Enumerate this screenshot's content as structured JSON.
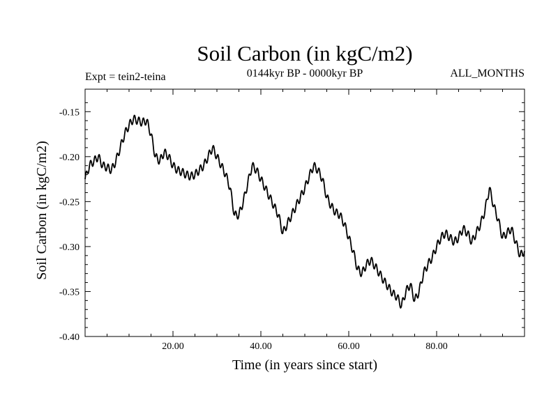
{
  "chart_data": {
    "type": "line",
    "title": "Soil Carbon (in kgC/m2)",
    "subtitle": "0144kyr BP - 0000kyr BP",
    "left_note": "Expt = tein2-teina",
    "right_note": "ALL_MONTHS",
    "xlabel": "Time (in years since start)",
    "ylabel": "Soil Carbon (in kgC/m2)",
    "xlim": [
      0,
      100
    ],
    "ylim": [
      -0.4,
      -0.125
    ],
    "x_ticks": [
      {
        "value": 20,
        "label": "20.00"
      },
      {
        "value": 40,
        "label": "40.00"
      },
      {
        "value": 60,
        "label": "60.00"
      },
      {
        "value": 80,
        "label": "80.00"
      }
    ],
    "y_ticks": [
      {
        "value": -0.15,
        "label": "-0.15"
      },
      {
        "value": -0.2,
        "label": "-0.20"
      },
      {
        "value": -0.25,
        "label": "-0.25"
      },
      {
        "value": -0.3,
        "label": "-0.30"
      },
      {
        "value": -0.35,
        "label": "-0.35"
      },
      {
        "value": -0.4,
        "label": "-0.40"
      }
    ],
    "line_color": "#000000",
    "series": [
      {
        "name": "Soil Carbon",
        "x": [
          0,
          1,
          2,
          3,
          4,
          5,
          6,
          7,
          8,
          9,
          10,
          11,
          12,
          13,
          14,
          15,
          16,
          17,
          18,
          19,
          20,
          21,
          22,
          23,
          24,
          25,
          26,
          27,
          28,
          29,
          30,
          31,
          32,
          33,
          34,
          35,
          36,
          37,
          38,
          39,
          40,
          41,
          42,
          43,
          44,
          45,
          46,
          47,
          48,
          49,
          50,
          51,
          52,
          53,
          54,
          55,
          56,
          57,
          58,
          59,
          60,
          61,
          62,
          63,
          64,
          65,
          66,
          67,
          68,
          69,
          70,
          71,
          72,
          73,
          74,
          75,
          76,
          77,
          78,
          79,
          80,
          81,
          82,
          83,
          84,
          85,
          86,
          87,
          88,
          89,
          90,
          91,
          92,
          93,
          94,
          95,
          96,
          97,
          98,
          99,
          100
        ],
        "values": [
          -0.225,
          -0.21,
          -0.205,
          -0.2,
          -0.21,
          -0.212,
          -0.215,
          -0.205,
          -0.19,
          -0.175,
          -0.165,
          -0.158,
          -0.16,
          -0.162,
          -0.16,
          -0.175,
          -0.2,
          -0.205,
          -0.195,
          -0.2,
          -0.21,
          -0.215,
          -0.217,
          -0.22,
          -0.222,
          -0.22,
          -0.215,
          -0.21,
          -0.2,
          -0.19,
          -0.2,
          -0.21,
          -0.22,
          -0.235,
          -0.265,
          -0.265,
          -0.25,
          -0.23,
          -0.21,
          -0.215,
          -0.225,
          -0.235,
          -0.245,
          -0.255,
          -0.265,
          -0.285,
          -0.275,
          -0.265,
          -0.255,
          -0.245,
          -0.235,
          -0.222,
          -0.21,
          -0.215,
          -0.225,
          -0.245,
          -0.255,
          -0.262,
          -0.265,
          -0.275,
          -0.29,
          -0.305,
          -0.325,
          -0.33,
          -0.32,
          -0.315,
          -0.322,
          -0.33,
          -0.338,
          -0.345,
          -0.352,
          -0.356,
          -0.366,
          -0.35,
          -0.342,
          -0.36,
          -0.35,
          -0.33,
          -0.32,
          -0.312,
          -0.3,
          -0.29,
          -0.285,
          -0.29,
          -0.295,
          -0.29,
          -0.28,
          -0.285,
          -0.295,
          -0.285,
          -0.275,
          -0.26,
          -0.235,
          -0.255,
          -0.27,
          -0.29,
          -0.285,
          -0.28,
          -0.295,
          -0.31,
          -0.305
        ]
      }
    ]
  }
}
